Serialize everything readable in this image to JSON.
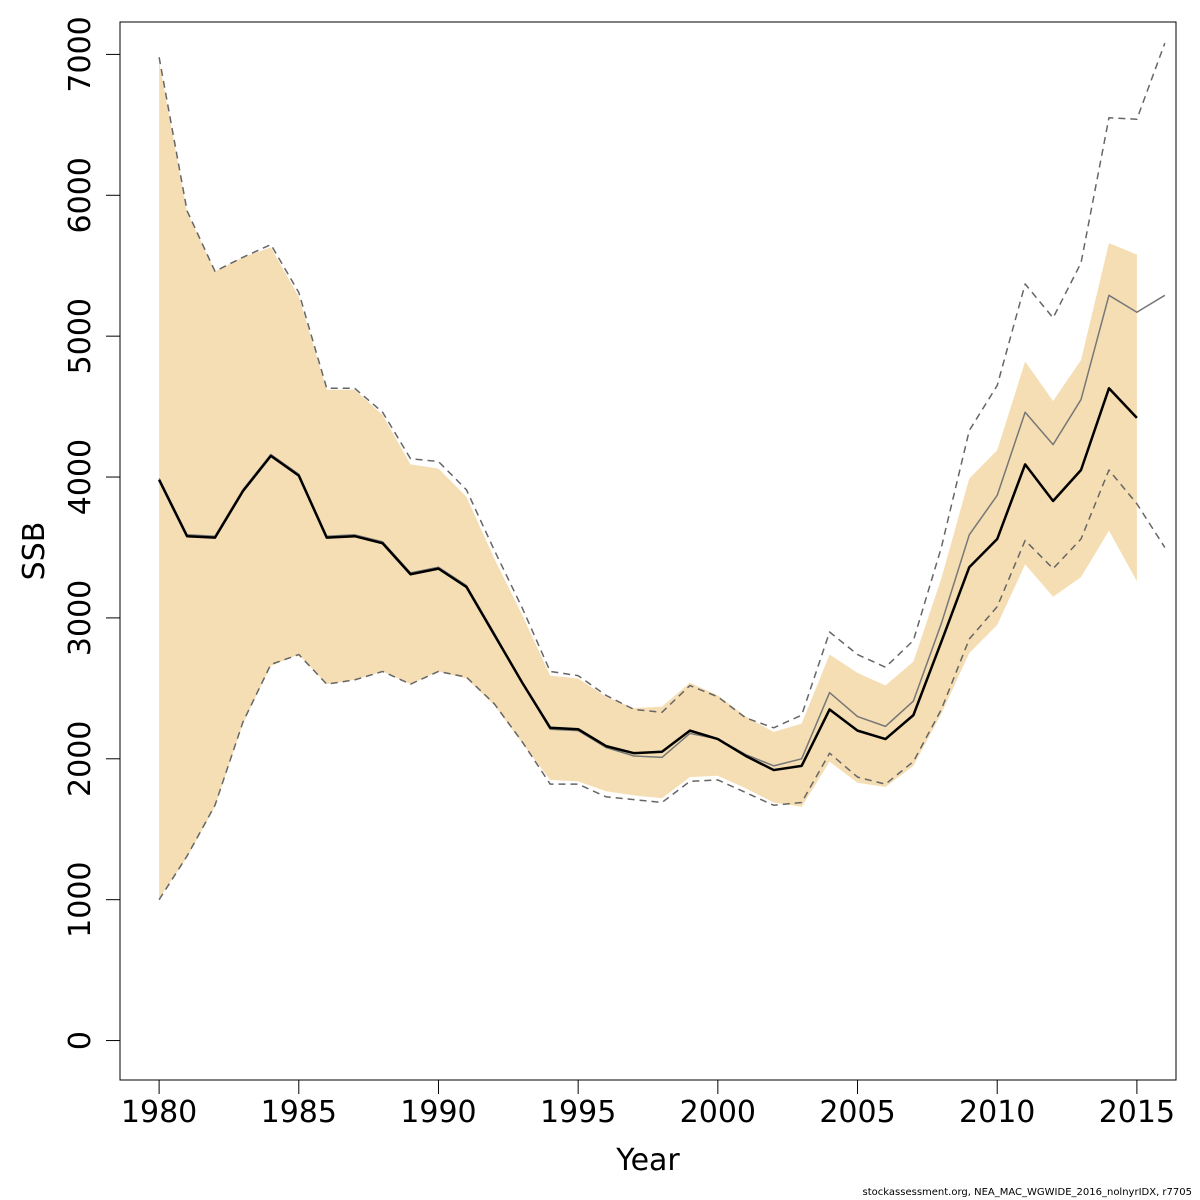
{
  "chart_data": {
    "type": "line",
    "xlabel": "Year",
    "ylabel": "SSB",
    "xlim": [
      1978.6,
      2016.4
    ],
    "ylim": [
      -280,
      7230
    ],
    "x_ticks": [
      1980,
      1985,
      1990,
      1995,
      2000,
      2005,
      2010,
      2015
    ],
    "y_ticks": [
      0,
      1000,
      2000,
      3000,
      4000,
      5000,
      6000,
      7000
    ],
    "grid": false,
    "legend": "none",
    "colors": {
      "band": "#f5deb3",
      "main": "#000000",
      "alt": "#777777",
      "ci": "#666666"
    },
    "band": {
      "x": [
        1980,
        1981,
        1982,
        1983,
        1984,
        1985,
        1986,
        1987,
        1988,
        1989,
        1990,
        1991,
        1992,
        1993,
        1994,
        1995,
        1996,
        1997,
        1998,
        1999,
        2000,
        2001,
        2002,
        2003,
        2004,
        2005,
        2006,
        2007,
        2008,
        2009,
        2010,
        2011,
        2012,
        2013,
        2014,
        2015
      ],
      "upper": [
        6950,
        5880,
        5460,
        5560,
        5630,
        5280,
        4620,
        4620,
        4440,
        4090,
        4060,
        3860,
        3420,
        3020,
        2590,
        2570,
        2440,
        2360,
        2370,
        2540,
        2450,
        2300,
        2190,
        2250,
        2740,
        2610,
        2520,
        2690,
        3280,
        3990,
        4190,
        4820,
        4540,
        4830,
        5660,
        5580
      ],
      "lower": [
        1010,
        1300,
        1660,
        2250,
        2660,
        2740,
        2530,
        2560,
        2620,
        2530,
        2620,
        2570,
        2380,
        2110,
        1850,
        1840,
        1770,
        1740,
        1720,
        1870,
        1880,
        1790,
        1690,
        1660,
        1980,
        1830,
        1800,
        1950,
        2320,
        2750,
        2950,
        3380,
        3150,
        3290,
        3620,
        3260
      ]
    },
    "series": [
      {
        "style": "main",
        "x": [
          1980,
          1981,
          1982,
          1983,
          1984,
          1985,
          1986,
          1987,
          1988,
          1989,
          1990,
          1991,
          1992,
          1993,
          1994,
          1995,
          1996,
          1997,
          1998,
          1999,
          2000,
          2001,
          2002,
          2003,
          2004,
          2005,
          2006,
          2007,
          2008,
          2009,
          2010,
          2011,
          2012,
          2013,
          2014,
          2015
        ],
        "values": [
          3980,
          3580,
          3570,
          3900,
          4150,
          4010,
          3570,
          3580,
          3530,
          3310,
          3350,
          3220,
          2880,
          2540,
          2220,
          2210,
          2090,
          2040,
          2050,
          2200,
          2140,
          2020,
          1920,
          1950,
          2350,
          2200,
          2140,
          2310,
          2830,
          3360,
          3560,
          4090,
          3830,
          4050,
          4630,
          4420
        ]
      },
      {
        "style": "alt",
        "x": [
          1980,
          1981,
          1982,
          1983,
          1984,
          1985,
          1986,
          1987,
          1988,
          1989,
          1990,
          1991,
          1992,
          1993,
          1994,
          1995,
          1996,
          1997,
          1998,
          1999,
          2000,
          2001,
          2002,
          2003,
          2004,
          2005,
          2006,
          2007,
          2008,
          2009,
          2010,
          2011,
          2012,
          2013,
          2014,
          2015,
          2016
        ],
        "values": [
          3990,
          3590,
          3580,
          3910,
          4160,
          4020,
          3580,
          3590,
          3540,
          3320,
          3360,
          3230,
          2890,
          2540,
          2210,
          2200,
          2080,
          2020,
          2010,
          2180,
          2140,
          2030,
          1950,
          2000,
          2470,
          2300,
          2230,
          2410,
          2960,
          3590,
          3870,
          4460,
          4230,
          4550,
          5290,
          5170,
          5290
        ]
      },
      {
        "style": "ci-upper",
        "x": [
          1980,
          1981,
          1982,
          1983,
          1984,
          1985,
          1986,
          1987,
          1988,
          1989,
          1990,
          1991,
          1992,
          1993,
          1994,
          1995,
          1996,
          1997,
          1998,
          1999,
          2000,
          2001,
          2002,
          2003,
          2004,
          2005,
          2006,
          2007,
          2008,
          2009,
          2010,
          2011,
          2012,
          2013,
          2014,
          2015,
          2016
        ],
        "values": [
          6980,
          5890,
          5460,
          5560,
          5650,
          5310,
          4630,
          4630,
          4460,
          4130,
          4110,
          3910,
          3480,
          3070,
          2620,
          2590,
          2450,
          2350,
          2330,
          2520,
          2440,
          2290,
          2220,
          2310,
          2900,
          2740,
          2650,
          2840,
          3500,
          4330,
          4650,
          5370,
          5130,
          5520,
          6550,
          6540,
          7080
        ]
      },
      {
        "style": "ci-lower",
        "x": [
          1980,
          1981,
          1982,
          1983,
          1984,
          1985,
          1986,
          1987,
          1988,
          1989,
          1990,
          1991,
          1992,
          1993,
          1994,
          1995,
          1996,
          1997,
          1998,
          1999,
          2000,
          2001,
          2002,
          2003,
          2004,
          2005,
          2006,
          2007,
          2008,
          2009,
          2010,
          2011,
          2012,
          2013,
          2014,
          2015,
          2016
        ],
        "values": [
          1000,
          1310,
          1670,
          2260,
          2670,
          2740,
          2530,
          2560,
          2620,
          2530,
          2620,
          2580,
          2390,
          2120,
          1820,
          1820,
          1730,
          1710,
          1690,
          1840,
          1850,
          1760,
          1670,
          1690,
          2040,
          1870,
          1820,
          1980,
          2350,
          2850,
          3080,
          3550,
          3350,
          3560,
          4050,
          3810,
          3500
        ]
      }
    ]
  },
  "footnote": "stockassessment.org, NEA_MAC_WGWIDE_2016_nolnyrIDX, r7705"
}
